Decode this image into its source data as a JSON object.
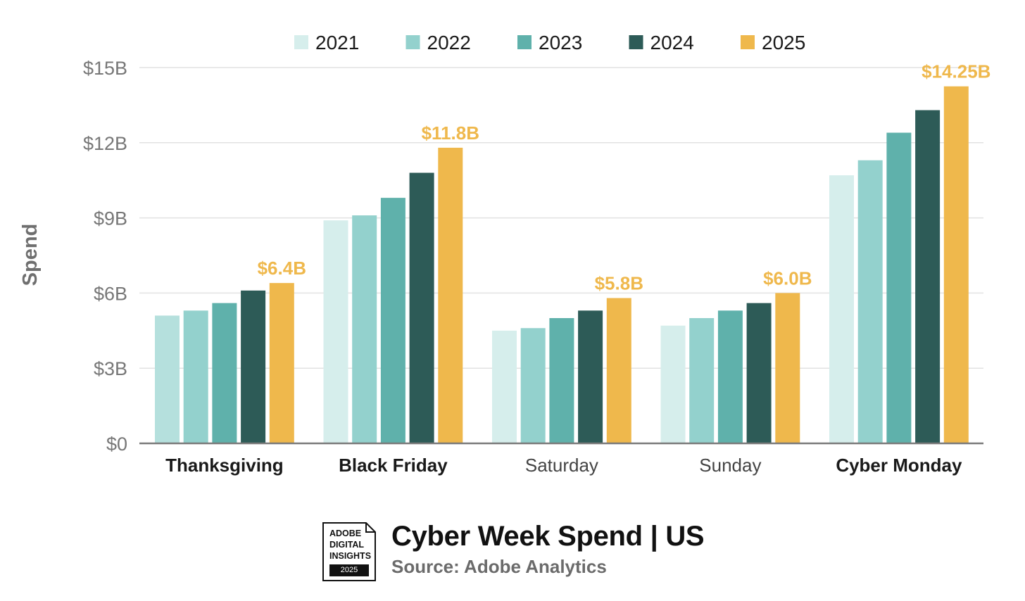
{
  "colors": {
    "2021": "#d6eeec",
    "2022": "#93d1cd",
    "2023": "#5fb1ab",
    "2024": "#2d5b57",
    "2025": "#efb84c",
    "thanksgiving_2021": "#b5e0dd",
    "grid": "#e2e2e2",
    "axis": "#7a7a7a",
    "tick_text": "#777777",
    "annotation": "#efb84c"
  },
  "chart_data": {
    "type": "bar",
    "categories": [
      "Thanksgiving",
      "Black Friday",
      "Saturday",
      "Sunday",
      "Cyber Monday"
    ],
    "category_bold": [
      true,
      true,
      false,
      false,
      true
    ],
    "series": [
      {
        "name": "2021",
        "values": [
          5.1,
          8.9,
          4.5,
          4.7,
          10.7
        ]
      },
      {
        "name": "2022",
        "values": [
          5.3,
          9.1,
          4.6,
          5.0,
          11.3
        ]
      },
      {
        "name": "2023",
        "values": [
          5.6,
          9.8,
          5.0,
          5.3,
          12.4
        ]
      },
      {
        "name": "2024",
        "values": [
          6.1,
          10.8,
          5.3,
          5.6,
          13.3
        ]
      },
      {
        "name": "2025",
        "values": [
          6.4,
          11.8,
          5.8,
          6.0,
          14.25
        ]
      }
    ],
    "data_labels": [
      "$6.4B",
      "$11.8B",
      "$5.8B",
      "$6.0B",
      "$14.25B"
    ],
    "ylabel": "Spend",
    "xlabel": "",
    "ylim": [
      0,
      15
    ],
    "yticks": [
      0,
      3,
      6,
      9,
      12,
      15
    ],
    "ytick_labels": [
      "$0",
      "$3B",
      "$6B",
      "$9B",
      "$12B",
      "$15B"
    ],
    "grid": true,
    "legend_position": "top"
  },
  "footer": {
    "badge_lines": [
      "ADOBE",
      "DIGITAL",
      "INSIGHTS"
    ],
    "badge_year": "2025",
    "title": "Cyber Week Spend | US",
    "source": "Source: Adobe Analytics"
  }
}
